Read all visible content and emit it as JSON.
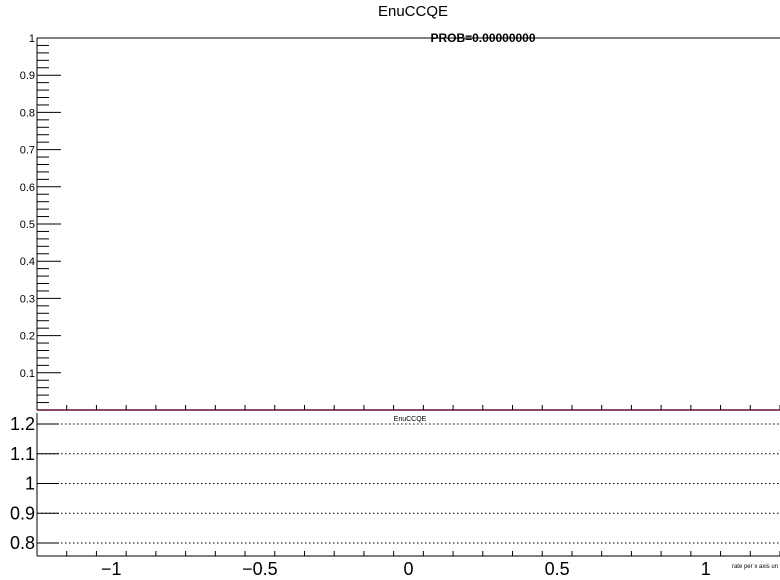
{
  "chart_data": [
    {
      "type": "line",
      "title": "EnuCCQE",
      "annotation": "PROB=0.00000000",
      "xlim": [
        -1.25,
        1.25
      ],
      "ylim": [
        0,
        1
      ],
      "y_ticks": [
        "0.1",
        "0.2",
        "0.3",
        "0.4",
        "0.5",
        "0.6",
        "0.7",
        "0.8",
        "0.9",
        "1"
      ],
      "series": [
        {
          "name": "",
          "x": [
            -1.25,
            1.25
          ],
          "y": [
            0,
            0
          ],
          "color": "#8a4a6a"
        }
      ],
      "grid": false,
      "colors": {
        "line": "#8a4a6a",
        "axis": "#000000"
      }
    },
    {
      "type": "line",
      "title": "EnuCCQE",
      "xlim": [
        -1.25,
        1.25
      ],
      "ylim": [
        0.77,
        1.24
      ],
      "x_ticks": [
        "−1",
        "−0.5",
        "0",
        "0.5",
        "1"
      ],
      "y_ticks": [
        "0.8",
        "0.9",
        "1",
        "1.1",
        "1.2"
      ],
      "xlabel": "rate per x axis un",
      "grid": true,
      "grid_style": "dotted"
    }
  ]
}
